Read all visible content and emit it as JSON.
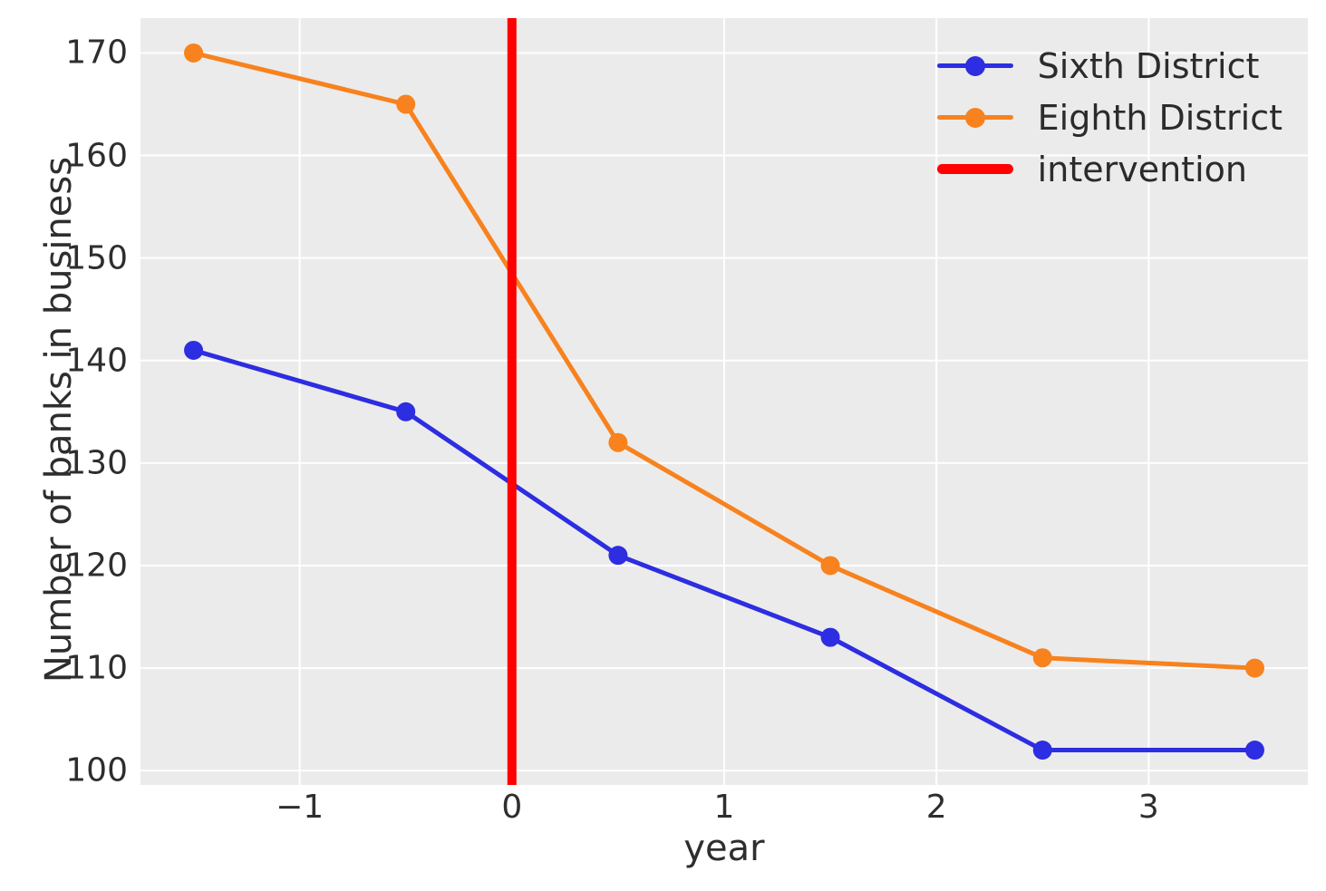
{
  "chart_data": {
    "type": "line",
    "xlabel": "year",
    "ylabel": "Number of banks in business",
    "x": [
      -1.5,
      -0.5,
      0.5,
      1.5,
      2.5,
      3.5
    ],
    "series": [
      {
        "name": "Sixth District",
        "color": "#2d2de1",
        "values": [
          141,
          135,
          121,
          113,
          102,
          102
        ]
      },
      {
        "name": "Eighth District",
        "color": "#f7821e",
        "values": [
          170,
          165,
          132,
          120,
          111,
          110
        ]
      }
    ],
    "intervention": {
      "label": "intervention",
      "color": "#ff0000",
      "x": 0
    },
    "xlim": [
      -1.75,
      3.75
    ],
    "ylim": [
      98.6,
      173.4
    ],
    "xticks": [
      -1,
      0,
      1,
      2,
      3
    ],
    "xtick_labels": [
      "−1",
      "0",
      "1",
      "2",
      "3"
    ],
    "yticks": [
      100,
      110,
      120,
      130,
      140,
      150,
      160,
      170
    ],
    "ytick_labels": [
      "100",
      "110",
      "120",
      "130",
      "140",
      "150",
      "160",
      "170"
    ],
    "grid": true,
    "grid_color": "#ffffff",
    "plot_bg": "#ebebeb",
    "legend_position": "upper right",
    "line_width": 5,
    "marker_radius": 10.5,
    "intervention_line_width": 10
  }
}
